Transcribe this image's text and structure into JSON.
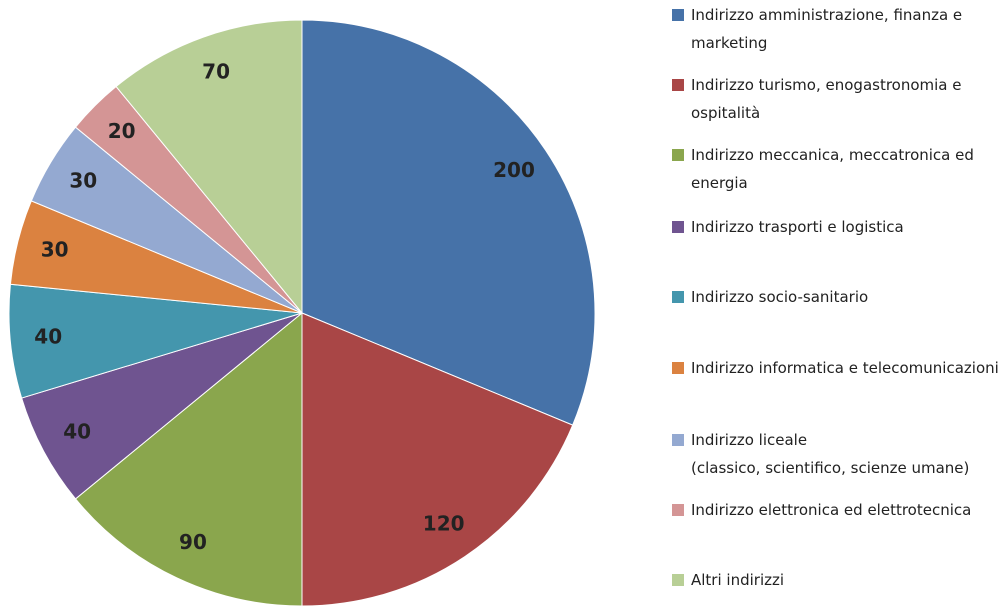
{
  "chart_data": {
    "type": "pie",
    "categories": [
      "Indirizzo amministrazione, finanza e marketing",
      "Indirizzo turismo, enogastronomia e ospitalità",
      "Indirizzo meccanica, meccatronica ed energia",
      "Indirizzo trasporti e logistica",
      "Indirizzo socio-sanitario",
      "Indirizzo informatica e telecomunicazioni",
      "Indirizzo liceale\n(classico, scientifico, scienze umane)",
      "Indirizzo elettronica ed elettrotecnica",
      "Altri indirizzi"
    ],
    "values": [
      200,
      120,
      90,
      40,
      40,
      30,
      30,
      20,
      70
    ],
    "colors": [
      "#4672a8",
      "#a94646",
      "#8aa64d",
      "#6f5490",
      "#4496ad",
      "#db8240",
      "#94a9d1",
      "#d49595",
      "#b8cf96"
    ],
    "legend": "right"
  }
}
